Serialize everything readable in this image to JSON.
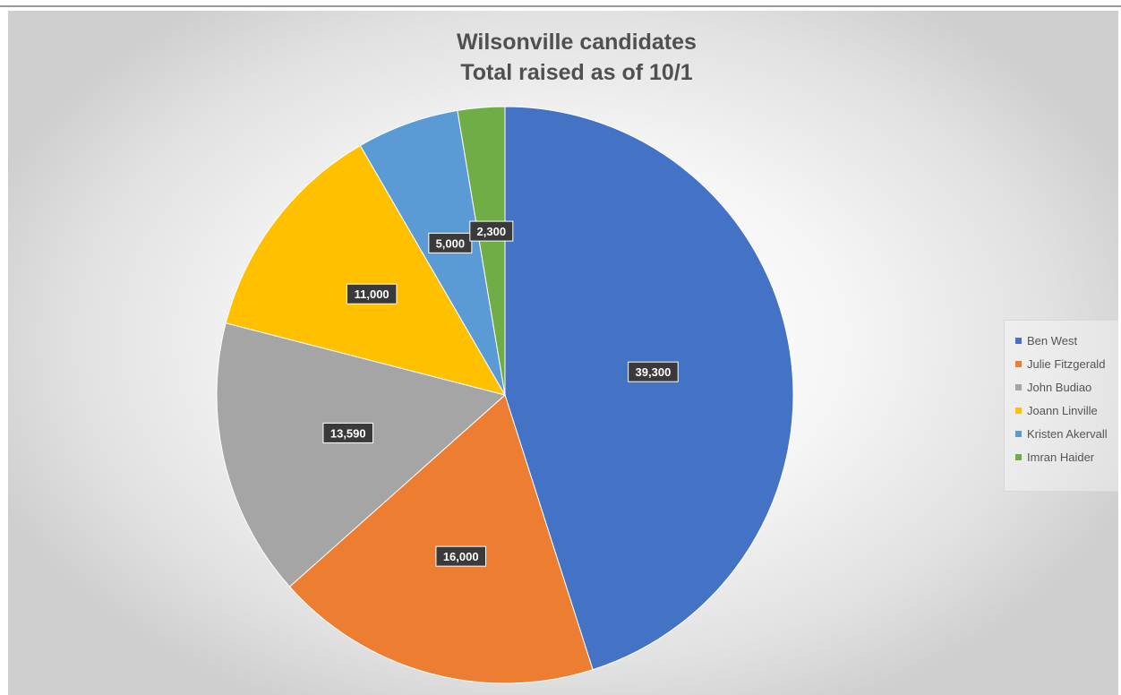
{
  "chart_data": {
    "type": "pie",
    "title": "Wilsonville candidates",
    "subtitle": "Total raised as of 10/1",
    "legend_position": "right",
    "slices": [
      {
        "name": "Ben West",
        "value": 39300,
        "label": "39,300",
        "color": "#4472c4"
      },
      {
        "name": "Julie Fitzgerald",
        "value": 16000,
        "label": "16,000",
        "color": "#ed7d31"
      },
      {
        "name": "John Budiao",
        "value": 13590,
        "label": "13,590",
        "color": "#a5a5a5"
      },
      {
        "name": "Joann Linville",
        "value": 11000,
        "label": "11,000",
        "color": "#ffc000"
      },
      {
        "name": "Kristen Akervall",
        "value": 5000,
        "label": "5,000",
        "color": "#5b9bd5"
      },
      {
        "name": "Imran Haider",
        "value": 2300,
        "label": "2,300",
        "color": "#70ad47"
      }
    ]
  }
}
